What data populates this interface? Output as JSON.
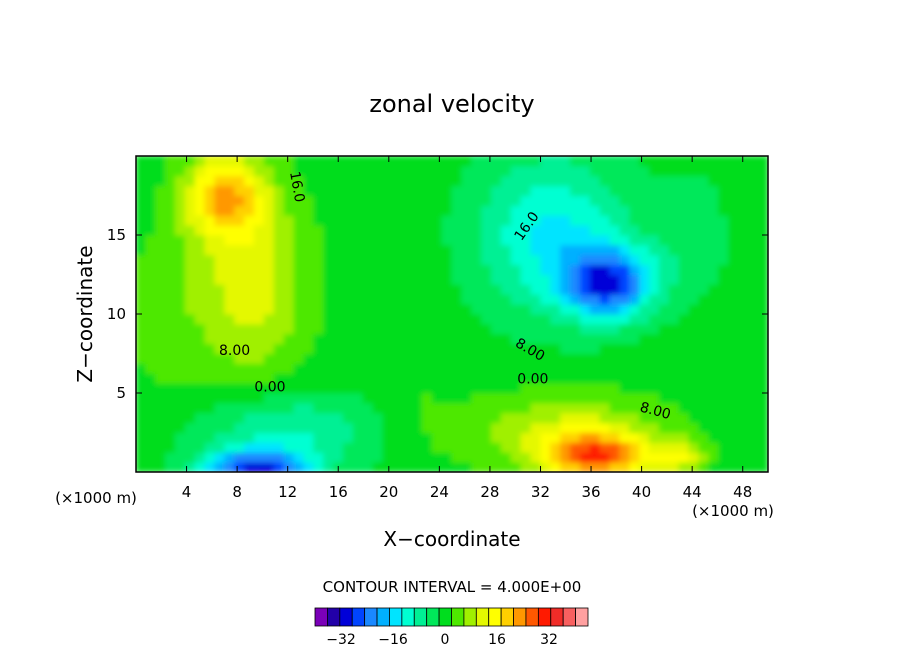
{
  "chart_data": {
    "type": "heatmap",
    "title": "zonal velocity",
    "xlabel": "X−coordinate",
    "ylabel": "Z−coordinate",
    "x_unit_left": "(×1000 m)",
    "x_unit_right": "(×1000 m)",
    "x_ticks": [
      "4",
      "8",
      "12",
      "16",
      "20",
      "24",
      "28",
      "32",
      "36",
      "40",
      "44",
      "48"
    ],
    "x_tick_values": [
      4,
      8,
      12,
      16,
      20,
      24,
      28,
      32,
      36,
      40,
      44,
      48
    ],
    "y_ticks": [
      "5",
      "10",
      "15"
    ],
    "y_tick_values": [
      5,
      10,
      15
    ],
    "xlim": [
      0,
      50
    ],
    "ylim": [
      0,
      20
    ],
    "contour_interval_label": "CONTOUR INTERVAL = 4.000E+00",
    "contour_interval": 4,
    "contour_labels": [
      {
        "text": "16.0",
        "x": 12.4,
        "y": 18.0,
        "angle": 80
      },
      {
        "text": "16.0",
        "x": 31.2,
        "y": 15.4,
        "angle": -55
      },
      {
        "text": "8.00",
        "x": 7.8,
        "y": 7.4,
        "angle": 0
      },
      {
        "text": "8.00",
        "x": 31.0,
        "y": 7.5,
        "angle": 30
      },
      {
        "text": "0.00",
        "x": 10.6,
        "y": 5.1,
        "angle": 0
      },
      {
        "text": "0.00",
        "x": 31.4,
        "y": 5.6,
        "angle": 0
      },
      {
        "text": "8.00",
        "x": 41.0,
        "y": 3.6,
        "angle": 15
      }
    ],
    "field_centers": [
      {
        "x": 7,
        "y": 17.5,
        "value": 19,
        "sx": 3.2,
        "sy": 2.6
      },
      {
        "x": 9,
        "y": 12,
        "value": 12,
        "sx": 4.5,
        "sy": 6
      },
      {
        "x": 2,
        "y": 10,
        "value": 4,
        "sx": 3,
        "sy": 5
      },
      {
        "x": 37.5,
        "y": 12,
        "value": -26,
        "sx": 3.5,
        "sy": 2.2
      },
      {
        "x": 33,
        "y": 15,
        "value": -14,
        "sx": 6,
        "sy": 5
      },
      {
        "x": 44,
        "y": 15,
        "value": -4,
        "sx": 3,
        "sy": 4
      },
      {
        "x": 9.5,
        "y": 0.2,
        "value": -27,
        "sx": 4,
        "sy": 1.2
      },
      {
        "x": 12,
        "y": 2.5,
        "value": -10,
        "sx": 7,
        "sy": 2.5
      },
      {
        "x": 36.5,
        "y": 1,
        "value": 24,
        "sx": 4,
        "sy": 1.5
      },
      {
        "x": 34,
        "y": 2.5,
        "value": 10,
        "sx": 8,
        "sy": 2.5
      },
      {
        "x": 43,
        "y": 1,
        "value": 12,
        "sx": 2,
        "sy": 1
      },
      {
        "x": 22,
        "y": 6,
        "value": 2,
        "sx": 3,
        "sy": 6
      }
    ],
    "colorbar": {
      "colors": [
        "#7a00b8",
        "#2200a8",
        "#0000d8",
        "#0044ff",
        "#1a88ff",
        "#00b0ff",
        "#00e4ff",
        "#00ffd2",
        "#00f094",
        "#00e85a",
        "#00dd1e",
        "#4ee800",
        "#a0f000",
        "#e4f800",
        "#ffff00",
        "#ffd000",
        "#ff9800",
        "#ff5800",
        "#ff1a00",
        "#f02c28",
        "#f86060",
        "#ffa0a0"
      ],
      "tick_labels": [
        "−32",
        "−16",
        "0",
        "16",
        "32"
      ],
      "tick_values": [
        -32,
        -16,
        0,
        16,
        32
      ],
      "min": -40,
      "max": 44
    }
  }
}
